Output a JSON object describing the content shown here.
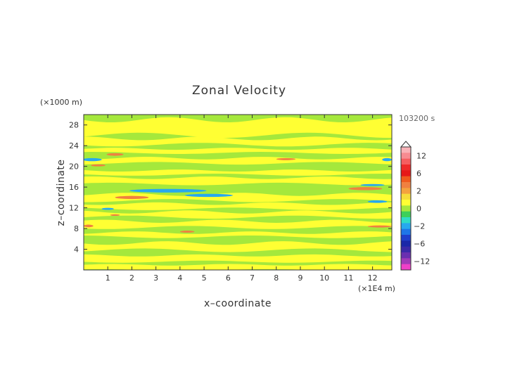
{
  "chart_data": {
    "type": "heatmap",
    "title": "Zonal Velocity",
    "xlabel": "x–coordinate",
    "ylabel": "z–coordinate",
    "x_unit": "(×1E4 m)",
    "y_unit": "(×1000 m)",
    "time_label": "103200 s",
    "xlim": [
      0,
      12.8
    ],
    "ylim": [
      0,
      30
    ],
    "x_ticks": [
      1,
      2,
      3,
      4,
      5,
      6,
      7,
      8,
      9,
      10,
      11,
      12
    ],
    "y_ticks": [
      4,
      8,
      12,
      16,
      20,
      24,
      28
    ],
    "background_value": 0,
    "bands": [
      {
        "y": [
          0,
          1.0
        ],
        "value": 0.6,
        "wave": 0.15
      },
      {
        "y": [
          1.6,
          2.8
        ],
        "value": 0.6,
        "wave": 0.2
      },
      {
        "y": [
          3.8,
          5.2
        ],
        "value": 0.6,
        "wave": 0.35
      },
      {
        "y": [
          6.4,
          7.2
        ],
        "value": 0.6,
        "wave": 0.25
      },
      {
        "y": [
          8.2,
          9.4
        ],
        "value": 0.6,
        "wave": 0.3
      },
      {
        "y": [
          10.2,
          11.2
        ],
        "value": 0.6,
        "wave": 0.3
      },
      {
        "y": [
          11.8,
          12.8
        ],
        "value": 0.6,
        "wave": 0.25
      },
      {
        "y": [
          13.4,
          14.6
        ],
        "value": 0.6,
        "wave": 0.3
      },
      {
        "y": [
          16.6,
          17.8
        ],
        "value": 0.6,
        "wave": 0.25
      },
      {
        "y": [
          18.4,
          19.2
        ],
        "value": 0.6,
        "wave": 0.2
      },
      {
        "y": [
          20.6,
          21.6
        ],
        "value": 0.6,
        "wave": 0.25
      },
      {
        "y": [
          22.6,
          23.4
        ],
        "value": 0.6,
        "wave": 0.2
      },
      {
        "y": [
          24.2,
          25.4
        ],
        "value": 0.6,
        "wave": 0.35
      },
      {
        "y": [
          26.0,
          29.0
        ],
        "value": 0.6,
        "wave": 0.5
      }
    ],
    "blobs": [
      {
        "x": 1.3,
        "y": 22.3,
        "rx": 0.35,
        "ry": 0.25,
        "value": 2.5
      },
      {
        "x": 0.35,
        "y": 21.3,
        "rx": 0.4,
        "ry": 0.3,
        "value": -2.5
      },
      {
        "x": 12.6,
        "y": 21.3,
        "rx": 0.2,
        "ry": 0.3,
        "value": -2.5
      },
      {
        "x": 8.4,
        "y": 21.4,
        "rx": 0.4,
        "ry": 0.2,
        "value": 2.5
      },
      {
        "x": 0.6,
        "y": 20.2,
        "rx": 0.3,
        "ry": 0.2,
        "value": 2.5
      },
      {
        "x": 3.5,
        "y": 15.3,
        "rx": 1.6,
        "ry": 0.35,
        "value": -2.5
      },
      {
        "x": 5.2,
        "y": 14.4,
        "rx": 1.0,
        "ry": 0.3,
        "value": -2.5
      },
      {
        "x": 2.0,
        "y": 14.0,
        "rx": 0.7,
        "ry": 0.3,
        "value": 2.5
      },
      {
        "x": 11.7,
        "y": 15.7,
        "rx": 0.7,
        "ry": 0.3,
        "value": 2.5
      },
      {
        "x": 12.0,
        "y": 16.4,
        "rx": 0.5,
        "ry": 0.2,
        "value": -2.5
      },
      {
        "x": 12.2,
        "y": 13.2,
        "rx": 0.4,
        "ry": 0.25,
        "value": -2.5
      },
      {
        "x": 1.0,
        "y": 11.8,
        "rx": 0.25,
        "ry": 0.2,
        "value": -2.5
      },
      {
        "x": 4.3,
        "y": 7.4,
        "rx": 0.3,
        "ry": 0.2,
        "value": 2.5
      },
      {
        "x": 12.3,
        "y": 8.4,
        "rx": 0.5,
        "ry": 0.2,
        "value": 2.5
      },
      {
        "x": 0.2,
        "y": 8.5,
        "rx": 0.2,
        "ry": 0.25,
        "value": 2.5
      },
      {
        "x": 1.3,
        "y": 10.6,
        "rx": 0.2,
        "ry": 0.15,
        "value": 2.5
      }
    ],
    "colorbar": {
      "labels": [
        12,
        6,
        2,
        0,
        -2,
        -6,
        -12
      ],
      "levels": [
        {
          "value": 14,
          "color": "#f9b3b8"
        },
        {
          "value": 12,
          "color": "#f78b91"
        },
        {
          "value": 10,
          "color": "#f55e60"
        },
        {
          "value": 8,
          "color": "#ee2a2a"
        },
        {
          "value": 6,
          "color": "#e61818"
        },
        {
          "value": 4,
          "color": "#f05a1e"
        },
        {
          "value": 3,
          "color": "#f08040"
        },
        {
          "value": 2,
          "color": "#f4a23e"
        },
        {
          "value": 1,
          "color": "#f6dd3a"
        },
        {
          "value": 0.5,
          "color": "#ffff33"
        },
        {
          "value": 0,
          "color": "#a5e83c"
        },
        {
          "value": -0.5,
          "color": "#3cd05a"
        },
        {
          "value": -1,
          "color": "#2fdcc6"
        },
        {
          "value": -2,
          "color": "#27a9ee"
        },
        {
          "value": -3,
          "color": "#1e76e8"
        },
        {
          "value": -4,
          "color": "#1f3fcc"
        },
        {
          "value": -6,
          "color": "#1a28a8"
        },
        {
          "value": -8,
          "color": "#3a2aa8"
        },
        {
          "value": -10,
          "color": "#6a30b0"
        },
        {
          "value": -12,
          "color": "#a23ab8"
        },
        {
          "value": -14,
          "color": "#f040c8"
        }
      ]
    }
  }
}
